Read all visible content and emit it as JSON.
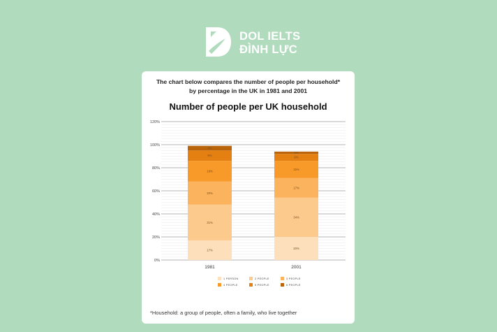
{
  "brand": {
    "line1": "DOL IELTS",
    "line2": "ĐÌNH LỰC",
    "logo_icon": "dol-logo-icon"
  },
  "card": {
    "title_line1": "The chart below compares the number of people per household*",
    "title_line2": "by percentage in the UK in 1981 and 2001",
    "footnote": "*Household: a group of people, often a family, who live together"
  },
  "chart_data": {
    "type": "bar",
    "stacked": true,
    "title": "Number of people per UK household",
    "categories": [
      "1981",
      "2001"
    ],
    "series": [
      {
        "name": "1 PERSON",
        "values": [
          17,
          20
        ],
        "labels": [
          "17%",
          "20%"
        ],
        "color": "#fde0bb"
      },
      {
        "name": "2 PEOPLE",
        "values": [
          31,
          34
        ],
        "labels": [
          "31%",
          "34%"
        ],
        "color": "#fdca8e"
      },
      {
        "name": "3 PEOPLE",
        "values": [
          20,
          17
        ],
        "labels": [
          "20%",
          "17%"
        ],
        "color": "#fbb35e"
      },
      {
        "name": "4 PEOPLE",
        "values": [
          18,
          15
        ],
        "labels": [
          "18%",
          "15%"
        ],
        "color": "#f89a2a"
      },
      {
        "name": "5 PEOPLE",
        "values": [
          9,
          6
        ],
        "labels": [
          "9%",
          "6%"
        ],
        "color": "#e47f12"
      },
      {
        "name": "6 PEOPLE",
        "values": [
          4,
          2
        ],
        "labels": [
          "4%",
          "2%"
        ],
        "color": "#b9640a"
      }
    ],
    "ylim": [
      0,
      120
    ],
    "yticks": [
      "0%",
      "20%",
      "40%",
      "60%",
      "80%",
      "100%",
      "120%"
    ],
    "ytick_values": [
      0,
      20,
      40,
      60,
      80,
      100,
      120
    ],
    "xlabel": "",
    "ylabel": "",
    "grid": true,
    "legend": "bottom"
  }
}
